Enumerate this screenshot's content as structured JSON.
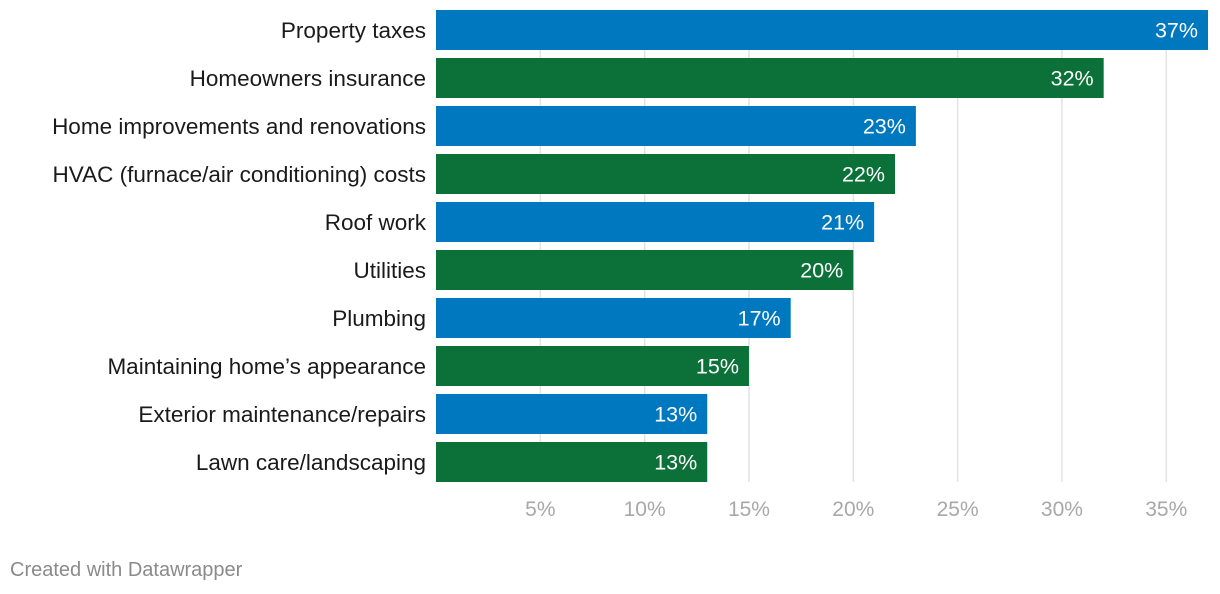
{
  "chart_data": {
    "type": "bar",
    "orientation": "horizontal",
    "title": "",
    "xlabel": "",
    "ylabel": "",
    "categories": [
      "Property taxes",
      "Homeowners insurance",
      "Home improvements and renovations",
      "HVAC (furnace/air conditioning) costs",
      "Roof work",
      "Utilities",
      "Plumbing",
      "Maintaining home’s appearance",
      "Exterior maintenance/repairs",
      "Lawn care/landscaping"
    ],
    "values": [
      37,
      32,
      23,
      22,
      21,
      20,
      17,
      15,
      13,
      13
    ],
    "value_labels": [
      "37%",
      "32%",
      "23%",
      "22%",
      "21%",
      "20%",
      "17%",
      "15%",
      "13%",
      "13%"
    ],
    "xlim": [
      0,
      37
    ],
    "ticks": [
      5,
      10,
      15,
      20,
      25,
      30,
      35
    ],
    "tick_labels": [
      "5%",
      "10%",
      "15%",
      "20%",
      "25%",
      "30%",
      "35%"
    ],
    "grid": true,
    "colors": [
      "#0078bf",
      "#0b7139"
    ]
  },
  "footer": {
    "credit": "Created with Datawrapper"
  }
}
